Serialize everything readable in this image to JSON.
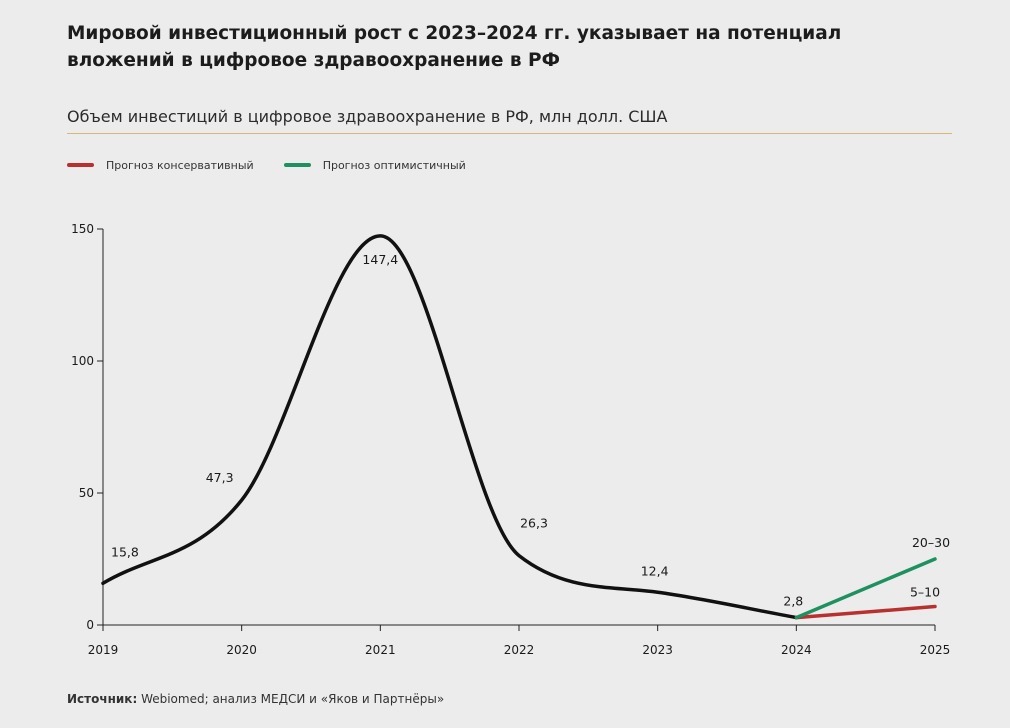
{
  "headline": "Мировой инвестиционный рост с 2023–2024 гг. указывает на потенциал вложений в цифровое здравоохранение в РФ",
  "source": {
    "label": "Источник:",
    "text": " Webiomed; анализ МЕДСИ и «Яков и Партнёры»"
  },
  "chart_data": {
    "type": "line",
    "title": "Объем инвестиций в цифровое здравоохранение в РФ, млн долл. США",
    "x": [
      2019,
      2020,
      2021,
      2022,
      2023,
      2024,
      2025
    ],
    "ylim": [
      0,
      150
    ],
    "yticks": [
      0,
      50,
      100,
      150
    ],
    "grid": false,
    "legend_position": "top-left",
    "series": [
      {
        "x": [
          2019,
          2020,
          2021,
          2022,
          2023,
          2024
        ],
        "values": [
          15.8,
          47.3,
          147.4,
          26.3,
          12.4,
          2.8
        ],
        "labels": [
          "15,8",
          "47,3",
          "147,4",
          "26,3",
          "12,4",
          "2,8"
        ],
        "color": "#111111"
      },
      {
        "name": "Прогноз консервативный",
        "x": [
          2024,
          2025
        ],
        "values": [
          2.8,
          7
        ],
        "end_label": "5–10",
        "color": "#b8312f"
      },
      {
        "name": "Прогноз оптимистичный",
        "x": [
          2024,
          2025
        ],
        "values": [
          2.8,
          25
        ],
        "end_label": "20–30",
        "color": "#1e9160"
      }
    ]
  }
}
